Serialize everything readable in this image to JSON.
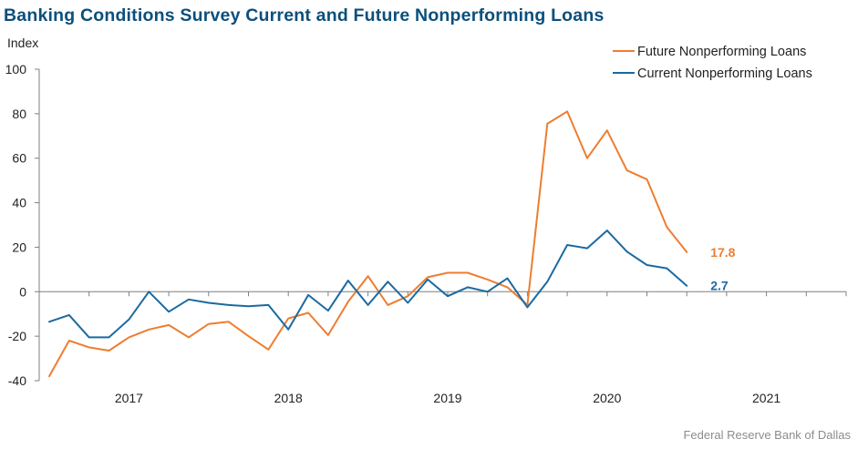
{
  "title": "Banking Conditions Survey Current and Future Nonperforming Loans",
  "source": "Federal Reserve Bank of Dallas",
  "colors": {
    "title": "#0b4f7c",
    "future": "#ee7d31",
    "current": "#1a6aa1",
    "axis": "#7f7f7f"
  },
  "chart_data": {
    "type": "line",
    "ylabel": "Index",
    "ylim": [
      -40,
      100
    ],
    "yticks": [
      -40,
      -20,
      0,
      20,
      40,
      60,
      80,
      100
    ],
    "xlim": [
      2016.5,
      2021.5
    ],
    "xticks": [
      {
        "label": "2017",
        "value": 2017
      },
      {
        "label": "2018",
        "value": 2018
      },
      {
        "label": "2019",
        "value": 2019
      },
      {
        "label": "2020",
        "value": 2020
      },
      {
        "label": "2021",
        "value": 2021
      }
    ],
    "x": [
      2016.5,
      2016.625,
      2016.75,
      2016.875,
      2017.0,
      2017.125,
      2017.25,
      2017.375,
      2017.5,
      2017.625,
      2017.75,
      2017.875,
      2018.0,
      2018.125,
      2018.25,
      2018.375,
      2018.5,
      2018.625,
      2018.75,
      2018.875,
      2019.0,
      2019.125,
      2019.25,
      2019.375,
      2019.5,
      2019.625,
      2019.75,
      2019.875,
      2020.0,
      2020.125,
      2020.25,
      2020.375,
      2020.5
    ],
    "legend_position": "top-right",
    "series": [
      {
        "name": "Future Nonperforming Loans",
        "color": "#ee7d31",
        "end_label": "17.8",
        "values": [
          -38,
          -22,
          -25,
          -26.5,
          -20.5,
          -17,
          -15,
          -20.5,
          -14.5,
          -13.5,
          -20,
          -26,
          -12,
          -9.5,
          -19.5,
          -4.5,
          7,
          -6,
          -2,
          6.5,
          8.5,
          8.5,
          5.5,
          2,
          -6,
          75.5,
          81,
          60,
          72.5,
          54.5,
          50.5,
          29,
          17.8
        ]
      },
      {
        "name": "Current Nonperforming Loans",
        "color": "#1a6aa1",
        "end_label": "2.7",
        "values": [
          -13.5,
          -10.5,
          -20.5,
          -20.5,
          -12.5,
          0,
          -9,
          -3.5,
          -5,
          -6,
          -6.5,
          -6,
          -17,
          -1.5,
          -8.5,
          5,
          -6,
          4.5,
          -5,
          5.5,
          -2,
          2,
          0,
          6,
          -7,
          4.5,
          21,
          19.5,
          27.5,
          18,
          12,
          10.5,
          2.7
        ]
      }
    ]
  }
}
